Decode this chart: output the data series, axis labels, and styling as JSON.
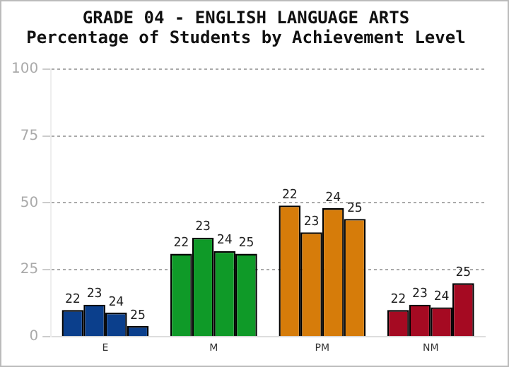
{
  "chart_data": {
    "type": "bar",
    "title": "GRADE 04 - ENGLISH LANGUAGE ARTS",
    "subtitle": "Percentage of Students by Achievement Level",
    "categories": [
      "E",
      "M",
      "PM",
      "NM"
    ],
    "series": [
      {
        "name": "22",
        "colors": [
          "#0b3f8c",
          "#0f9a28",
          "#d67c0a",
          "#a50a22"
        ],
        "values": [
          10,
          31,
          49,
          10
        ]
      },
      {
        "name": "23",
        "colors": [
          "#0b3f8c",
          "#0f9a28",
          "#d67c0a",
          "#a50a22"
        ],
        "values": [
          12,
          37,
          39,
          12
        ]
      },
      {
        "name": "24",
        "colors": [
          "#0b3f8c",
          "#0f9a28",
          "#d67c0a",
          "#a50a22"
        ],
        "values": [
          9,
          32,
          48,
          11
        ]
      },
      {
        "name": "25",
        "colors": [
          "#0b3f8c",
          "#0f9a28",
          "#d67c0a",
          "#a50a22"
        ],
        "values": [
          4,
          31,
          44,
          20
        ]
      }
    ],
    "ylim": [
      0,
      100
    ],
    "yticks": [
      0,
      25,
      50,
      75,
      100
    ],
    "grid": "y",
    "legend": false
  }
}
